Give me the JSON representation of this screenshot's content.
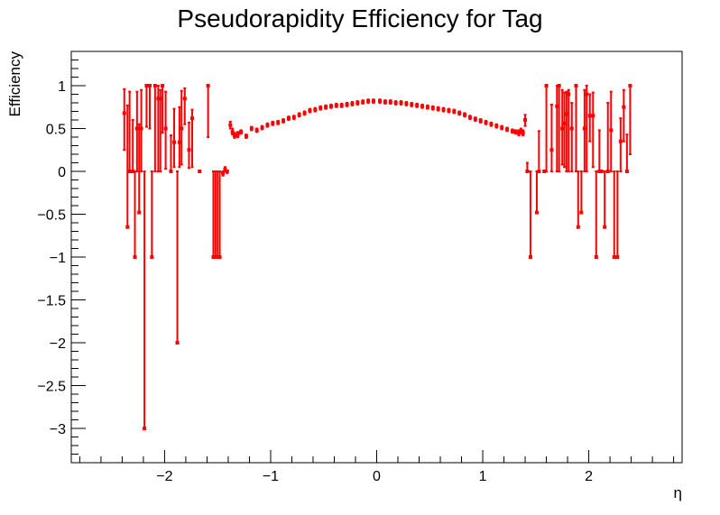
{
  "chart_data": {
    "type": "scatter",
    "title": "Pseudorapidity Efficiency for Tag",
    "xlabel": "η",
    "ylabel": "Efficiency",
    "xlim": [
      -2.88,
      2.88
    ],
    "ylim": [
      -3.4,
      1.4
    ],
    "grid": false,
    "legend": "none",
    "marker_color": "#ff0000",
    "x_ticks": [
      -2,
      -1,
      0,
      1,
      2
    ],
    "x_tick_labels": [
      "−2",
      "−1",
      "0",
      "1",
      "2"
    ],
    "y_ticks": [
      1,
      0.5,
      0,
      -0.5,
      -1,
      -1.5,
      -2,
      -2.5,
      -3
    ],
    "y_tick_labels": [
      "1",
      "0.5",
      "0",
      "−0.5",
      "−1",
      "−1.5",
      "−2",
      "−2.5",
      "−3"
    ],
    "series": [
      {
        "points": [
          {
            "x": -2.38,
            "y": 0.68,
            "lo": 0.25,
            "hi": 0.96
          },
          {
            "x": -2.35,
            "y": -0.65,
            "lo": -0.65,
            "hi": 0.77
          },
          {
            "x": -2.33,
            "y": 0.0,
            "lo": 0.0,
            "hi": 0.93
          },
          {
            "x": -2.3,
            "y": 0.0,
            "lo": 0.0,
            "hi": 0.6
          },
          {
            "x": -2.28,
            "y": -1.0,
            "lo": -1.0,
            "hi": 0.0
          },
          {
            "x": -2.26,
            "y": 0.5,
            "lo": 0.0,
            "hi": 0.93
          },
          {
            "x": -2.24,
            "y": -0.48,
            "lo": -0.48,
            "hi": 0.55
          },
          {
            "x": -2.22,
            "y": 0.5,
            "lo": 0.0,
            "hi": 0.95
          },
          {
            "x": -2.19,
            "y": -3.0,
            "lo": -3.0,
            "hi": 0.0
          },
          {
            "x": -2.17,
            "y": 1.0,
            "lo": 0.52,
            "hi": 1.0
          },
          {
            "x": -2.14,
            "y": 1.0,
            "lo": 0.5,
            "hi": 1.0
          },
          {
            "x": -2.12,
            "y": -1.0,
            "lo": -1.0,
            "hi": 0.0
          },
          {
            "x": -2.09,
            "y": 1.0,
            "lo": 0.0,
            "hi": 1.0
          },
          {
            "x": -2.06,
            "y": 0.85,
            "lo": 0.0,
            "hi": 1.0
          },
          {
            "x": -2.04,
            "y": 0.85,
            "lo": 0.0,
            "hi": 0.95
          },
          {
            "x": -2.02,
            "y": 1.0,
            "lo": 0.45,
            "hi": 1.0
          },
          {
            "x": -1.99,
            "y": 0.5,
            "lo": 0.03,
            "hi": 0.93
          },
          {
            "x": -1.94,
            "y": 0.0,
            "lo": 0.0,
            "hi": 0.42
          },
          {
            "x": -1.91,
            "y": 0.34,
            "lo": 0.05,
            "hi": 0.73
          },
          {
            "x": -1.88,
            "y": -2.0,
            "lo": -2.0,
            "hi": 0.0
          },
          {
            "x": -1.86,
            "y": 0.34,
            "lo": 0.05,
            "hi": 0.75
          },
          {
            "x": -1.84,
            "y": 0.5,
            "lo": 0.08,
            "hi": 0.94
          },
          {
            "x": -1.81,
            "y": 0.85,
            "lo": 0.55,
            "hi": 0.97
          },
          {
            "x": -1.77,
            "y": 0.25,
            "lo": 0.04,
            "hi": 0.57
          },
          {
            "x": -1.74,
            "y": 0.62,
            "lo": 0.05,
            "hi": 0.72
          },
          {
            "x": -1.67,
            "y": 0.0,
            "lo": 0.0,
            "hi": 0.0
          },
          {
            "x": -1.59,
            "y": 1.0,
            "lo": 0.4,
            "hi": 1.0
          },
          {
            "x": -1.54,
            "y": -1.0,
            "lo": -1.0,
            "hi": 0.0
          },
          {
            "x": -1.52,
            "y": -1.0,
            "lo": -1.0,
            "hi": 0.0
          },
          {
            "x": -1.5,
            "y": -1.0,
            "lo": -1.0,
            "hi": 0.0
          },
          {
            "x": -1.48,
            "y": -1.0,
            "lo": -1.0,
            "hi": 0.0
          },
          {
            "x": -1.45,
            "y": -0.02,
            "lo": -0.05,
            "hi": 0.0
          },
          {
            "x": -1.43,
            "y": 0.02,
            "lo": 0.0,
            "hi": 0.05
          },
          {
            "x": -1.41,
            "y": 0.0,
            "lo": -0.02,
            "hi": 0.0
          },
          {
            "x": -1.38,
            "y": 0.54,
            "lo": 0.5,
            "hi": 0.58
          },
          {
            "x": -1.36,
            "y": 0.46,
            "lo": 0.43,
            "hi": 0.5
          },
          {
            "x": -1.34,
            "y": 0.42,
            "lo": 0.39,
            "hi": 0.45
          },
          {
            "x": -1.31,
            "y": 0.43,
            "lo": 0.4,
            "hi": 0.46
          },
          {
            "x": -1.28,
            "y": 0.46,
            "lo": 0.44,
            "hi": 0.48
          },
          {
            "x": -1.23,
            "y": 0.41,
            "lo": 0.39,
            "hi": 0.43
          },
          {
            "x": -1.18,
            "y": 0.5,
            "lo": 0.48,
            "hi": 0.52
          },
          {
            "x": -1.13,
            "y": 0.48,
            "lo": 0.46,
            "hi": 0.5
          },
          {
            "x": -1.08,
            "y": 0.51,
            "lo": 0.49,
            "hi": 0.53
          },
          {
            "x": -1.03,
            "y": 0.54,
            "lo": 0.52,
            "hi": 0.56
          },
          {
            "x": -0.98,
            "y": 0.56,
            "lo": 0.54,
            "hi": 0.58
          },
          {
            "x": -0.93,
            "y": 0.57,
            "lo": 0.55,
            "hi": 0.59
          },
          {
            "x": -0.88,
            "y": 0.59,
            "lo": 0.57,
            "hi": 0.61
          },
          {
            "x": -0.83,
            "y": 0.62,
            "lo": 0.6,
            "hi": 0.64
          },
          {
            "x": -0.78,
            "y": 0.63,
            "lo": 0.61,
            "hi": 0.65
          },
          {
            "x": -0.73,
            "y": 0.66,
            "lo": 0.64,
            "hi": 0.68
          },
          {
            "x": -0.68,
            "y": 0.68,
            "lo": 0.66,
            "hi": 0.7
          },
          {
            "x": -0.63,
            "y": 0.71,
            "lo": 0.69,
            "hi": 0.73
          },
          {
            "x": -0.58,
            "y": 0.72,
            "lo": 0.7,
            "hi": 0.74
          },
          {
            "x": -0.53,
            "y": 0.74,
            "lo": 0.72,
            "hi": 0.76
          },
          {
            "x": -0.48,
            "y": 0.75,
            "lo": 0.73,
            "hi": 0.77
          },
          {
            "x": -0.43,
            "y": 0.76,
            "lo": 0.74,
            "hi": 0.78
          },
          {
            "x": -0.38,
            "y": 0.77,
            "lo": 0.75,
            "hi": 0.79
          },
          {
            "x": -0.33,
            "y": 0.77,
            "lo": 0.75,
            "hi": 0.79
          },
          {
            "x": -0.28,
            "y": 0.78,
            "lo": 0.76,
            "hi": 0.8
          },
          {
            "x": -0.23,
            "y": 0.79,
            "lo": 0.77,
            "hi": 0.81
          },
          {
            "x": -0.18,
            "y": 0.8,
            "lo": 0.78,
            "hi": 0.82
          },
          {
            "x": -0.13,
            "y": 0.81,
            "lo": 0.79,
            "hi": 0.83
          },
          {
            "x": -0.08,
            "y": 0.82,
            "lo": 0.8,
            "hi": 0.84
          },
          {
            "x": -0.03,
            "y": 0.82,
            "lo": 0.8,
            "hi": 0.84
          },
          {
            "x": 0.03,
            "y": 0.82,
            "lo": 0.8,
            "hi": 0.84
          },
          {
            "x": 0.08,
            "y": 0.81,
            "lo": 0.79,
            "hi": 0.83
          },
          {
            "x": 0.13,
            "y": 0.81,
            "lo": 0.79,
            "hi": 0.83
          },
          {
            "x": 0.18,
            "y": 0.8,
            "lo": 0.78,
            "hi": 0.82
          },
          {
            "x": 0.23,
            "y": 0.8,
            "lo": 0.78,
            "hi": 0.82
          },
          {
            "x": 0.28,
            "y": 0.79,
            "lo": 0.77,
            "hi": 0.81
          },
          {
            "x": 0.33,
            "y": 0.78,
            "lo": 0.76,
            "hi": 0.8
          },
          {
            "x": 0.38,
            "y": 0.77,
            "lo": 0.75,
            "hi": 0.79
          },
          {
            "x": 0.43,
            "y": 0.76,
            "lo": 0.74,
            "hi": 0.78
          },
          {
            "x": 0.48,
            "y": 0.75,
            "lo": 0.73,
            "hi": 0.77
          },
          {
            "x": 0.53,
            "y": 0.74,
            "lo": 0.72,
            "hi": 0.76
          },
          {
            "x": 0.58,
            "y": 0.73,
            "lo": 0.71,
            "hi": 0.75
          },
          {
            "x": 0.63,
            "y": 0.72,
            "lo": 0.7,
            "hi": 0.74
          },
          {
            "x": 0.68,
            "y": 0.71,
            "lo": 0.69,
            "hi": 0.73
          },
          {
            "x": 0.73,
            "y": 0.7,
            "lo": 0.68,
            "hi": 0.72
          },
          {
            "x": 0.78,
            "y": 0.68,
            "lo": 0.66,
            "hi": 0.7
          },
          {
            "x": 0.83,
            "y": 0.66,
            "lo": 0.64,
            "hi": 0.68
          },
          {
            "x": 0.88,
            "y": 0.63,
            "lo": 0.61,
            "hi": 0.65
          },
          {
            "x": 0.93,
            "y": 0.61,
            "lo": 0.59,
            "hi": 0.63
          },
          {
            "x": 0.98,
            "y": 0.59,
            "lo": 0.57,
            "hi": 0.61
          },
          {
            "x": 1.03,
            "y": 0.57,
            "lo": 0.55,
            "hi": 0.59
          },
          {
            "x": 1.08,
            "y": 0.55,
            "lo": 0.53,
            "hi": 0.57
          },
          {
            "x": 1.13,
            "y": 0.53,
            "lo": 0.51,
            "hi": 0.55
          },
          {
            "x": 1.18,
            "y": 0.51,
            "lo": 0.49,
            "hi": 0.53
          },
          {
            "x": 1.23,
            "y": 0.49,
            "lo": 0.47,
            "hi": 0.51
          },
          {
            "x": 1.28,
            "y": 0.47,
            "lo": 0.45,
            "hi": 0.49
          },
          {
            "x": 1.31,
            "y": 0.46,
            "lo": 0.44,
            "hi": 0.48
          },
          {
            "x": 1.34,
            "y": 0.45,
            "lo": 0.42,
            "hi": 0.48
          },
          {
            "x": 1.36,
            "y": 0.47,
            "lo": 0.44,
            "hi": 0.5
          },
          {
            "x": 1.38,
            "y": 0.45,
            "lo": 0.42,
            "hi": 0.48
          },
          {
            "x": 1.4,
            "y": 0.6,
            "lo": 0.53,
            "hi": 0.66
          },
          {
            "x": 1.42,
            "y": 0.0,
            "lo": 0.0,
            "hi": 0.1
          },
          {
            "x": 1.45,
            "y": -1.0,
            "lo": -1.0,
            "hi": 0.0
          },
          {
            "x": 1.51,
            "y": -0.48,
            "lo": -0.48,
            "hi": 0.0
          },
          {
            "x": 1.53,
            "y": 0.0,
            "lo": 0.0,
            "hi": 0.47
          },
          {
            "x": 1.58,
            "y": 0.0,
            "lo": 0.0,
            "hi": 0.0
          },
          {
            "x": 1.6,
            "y": 1.0,
            "lo": 0.0,
            "hi": 1.0
          },
          {
            "x": 1.65,
            "y": 0.25,
            "lo": 0.0,
            "hi": 0.78
          },
          {
            "x": 1.7,
            "y": 0.76,
            "lo": 0.0,
            "hi": 1.0
          },
          {
            "x": 1.72,
            "y": 1.0,
            "lo": 0.0,
            "hi": 1.0
          },
          {
            "x": 1.75,
            "y": 0.5,
            "lo": 0.08,
            "hi": 0.95
          },
          {
            "x": 1.77,
            "y": 0.56,
            "lo": 0.05,
            "hi": 0.92
          },
          {
            "x": 1.79,
            "y": 0.67,
            "lo": 0.0,
            "hi": 0.93
          },
          {
            "x": 1.81,
            "y": 0.9,
            "lo": 0.0,
            "hi": 0.95
          },
          {
            "x": 1.84,
            "y": 0.5,
            "lo": 0.0,
            "hi": 0.8
          },
          {
            "x": 1.88,
            "y": 1.0,
            "lo": 0.0,
            "hi": 1.0
          },
          {
            "x": 1.9,
            "y": -0.65,
            "lo": -0.65,
            "hi": 0.0
          },
          {
            "x": 1.93,
            "y": -0.48,
            "lo": -0.48,
            "hi": 0.0
          },
          {
            "x": 1.96,
            "y": 0.5,
            "lo": 0.0,
            "hi": 0.95
          },
          {
            "x": 1.98,
            "y": 0.9,
            "lo": 0.0,
            "hi": 1.0
          },
          {
            "x": 2.01,
            "y": 0.65,
            "lo": 0.35,
            "hi": 0.9
          },
          {
            "x": 2.04,
            "y": 0.65,
            "lo": 0.05,
            "hi": 0.92
          },
          {
            "x": 2.07,
            "y": -1.0,
            "lo": -1.0,
            "hi": 0.0
          },
          {
            "x": 2.1,
            "y": 0.0,
            "lo": 0.0,
            "hi": 0.48
          },
          {
            "x": 2.12,
            "y": 0.0,
            "lo": 0.0,
            "hi": 0.0
          },
          {
            "x": 2.15,
            "y": -0.65,
            "lo": -0.65,
            "hi": 0.0
          },
          {
            "x": 2.18,
            "y": 0.0,
            "lo": 0.0,
            "hi": 0.8
          },
          {
            "x": 2.21,
            "y": 0.48,
            "lo": 0.0,
            "hi": 0.93
          },
          {
            "x": 2.24,
            "y": -1.0,
            "lo": -1.0,
            "hi": 0.0
          },
          {
            "x": 2.27,
            "y": -1.0,
            "lo": -1.0,
            "hi": 0.0
          },
          {
            "x": 2.3,
            "y": 0.35,
            "lo": 0.0,
            "hi": 0.62
          },
          {
            "x": 2.33,
            "y": 0.75,
            "lo": 0.35,
            "hi": 0.95
          },
          {
            "x": 2.36,
            "y": 0.0,
            "lo": 0.0,
            "hi": 0.43
          },
          {
            "x": 2.39,
            "y": 1.0,
            "lo": 0.2,
            "hi": 1.0
          }
        ]
      }
    ]
  }
}
